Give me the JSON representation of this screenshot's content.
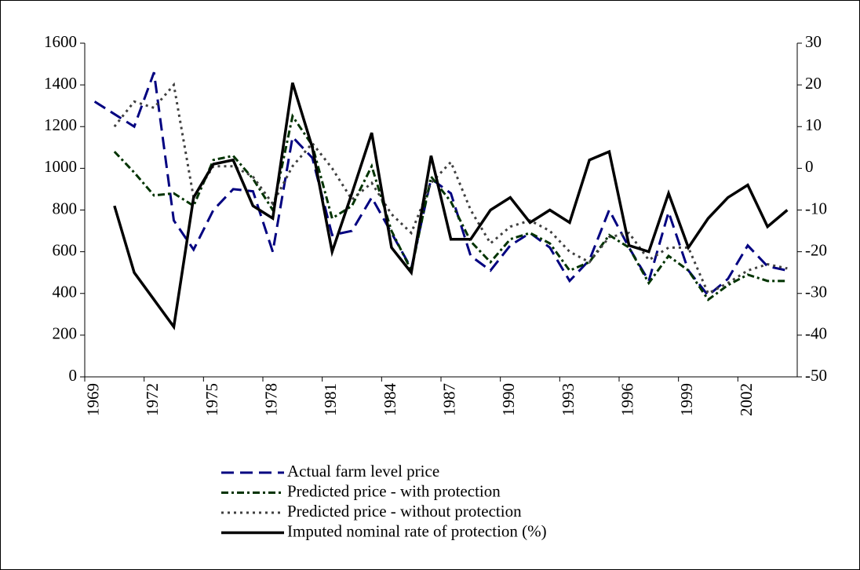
{
  "chart_data": {
    "type": "line",
    "categories": [
      "1969",
      null,
      null,
      "1972",
      null,
      null,
      "1975",
      null,
      null,
      "1978",
      null,
      null,
      "1981",
      null,
      null,
      "1984",
      null,
      null,
      "1987",
      null,
      null,
      "1990",
      null,
      null,
      "1993",
      null,
      null,
      "1996",
      null,
      null,
      "1999",
      null,
      null,
      "2002",
      null,
      null
    ],
    "series": [
      {
        "name": "Actual farm level price",
        "color": "#000080",
        "dash": "16,8",
        "values": [
          1320,
          1260,
          1200,
          1460,
          750,
          610,
          800,
          900,
          890,
          600,
          1150,
          1050,
          680,
          700,
          860,
          690,
          520,
          950,
          880,
          580,
          510,
          630,
          690,
          620,
          460,
          560,
          800,
          620,
          460,
          790,
          510,
          390,
          470,
          630,
          530,
          510
        ]
      },
      {
        "name": "Predicted price - with protection",
        "color": "#003300",
        "dash": "9,4,3,4",
        "values": [
          null,
          1080,
          980,
          870,
          880,
          820,
          1040,
          1060,
          950,
          800,
          1250,
          1110,
          760,
          820,
          1010,
          700,
          510,
          960,
          840,
          650,
          550,
          660,
          690,
          640,
          510,
          550,
          680,
          620,
          450,
          580,
          510,
          370,
          440,
          490,
          460,
          460
        ]
      },
      {
        "name": "Predicted price - without protection",
        "color": "#404040",
        "dash": "3,5",
        "values": [
          null,
          1200,
          1320,
          1290,
          1400,
          860,
          1010,
          1010,
          960,
          830,
          1010,
          1120,
          1000,
          850,
          930,
          780,
          690,
          930,
          1030,
          800,
          640,
          720,
          750,
          700,
          600,
          550,
          670,
          690,
          560,
          620,
          620,
          400,
          450,
          510,
          540,
          520
        ]
      },
      {
        "name": "Imputed nominal rate of protection (%)",
        "color": "#000000",
        "axis": "y2",
        "values": [
          null,
          -9,
          -25,
          -31.5,
          -38,
          -7,
          1,
          2,
          -9,
          -12,
          20.5,
          5,
          -20,
          -6,
          8.5,
          -19,
          -25,
          3,
          -17,
          -17,
          -10,
          -7,
          -13,
          -10,
          -13,
          2,
          4,
          -18.5,
          -20,
          -6,
          -19,
          -12,
          -7,
          -4,
          -14,
          -10
        ]
      }
    ],
    "ylim": [
      0,
      1600
    ],
    "yticks": [
      0,
      200,
      400,
      600,
      800,
      1000,
      1200,
      1400,
      1600
    ],
    "y2lim": [
      -50,
      30
    ],
    "y2ticks": [
      -50,
      -40,
      -30,
      -20,
      -10,
      0,
      10,
      20,
      30
    ],
    "grid": false,
    "legend": "bottom"
  }
}
